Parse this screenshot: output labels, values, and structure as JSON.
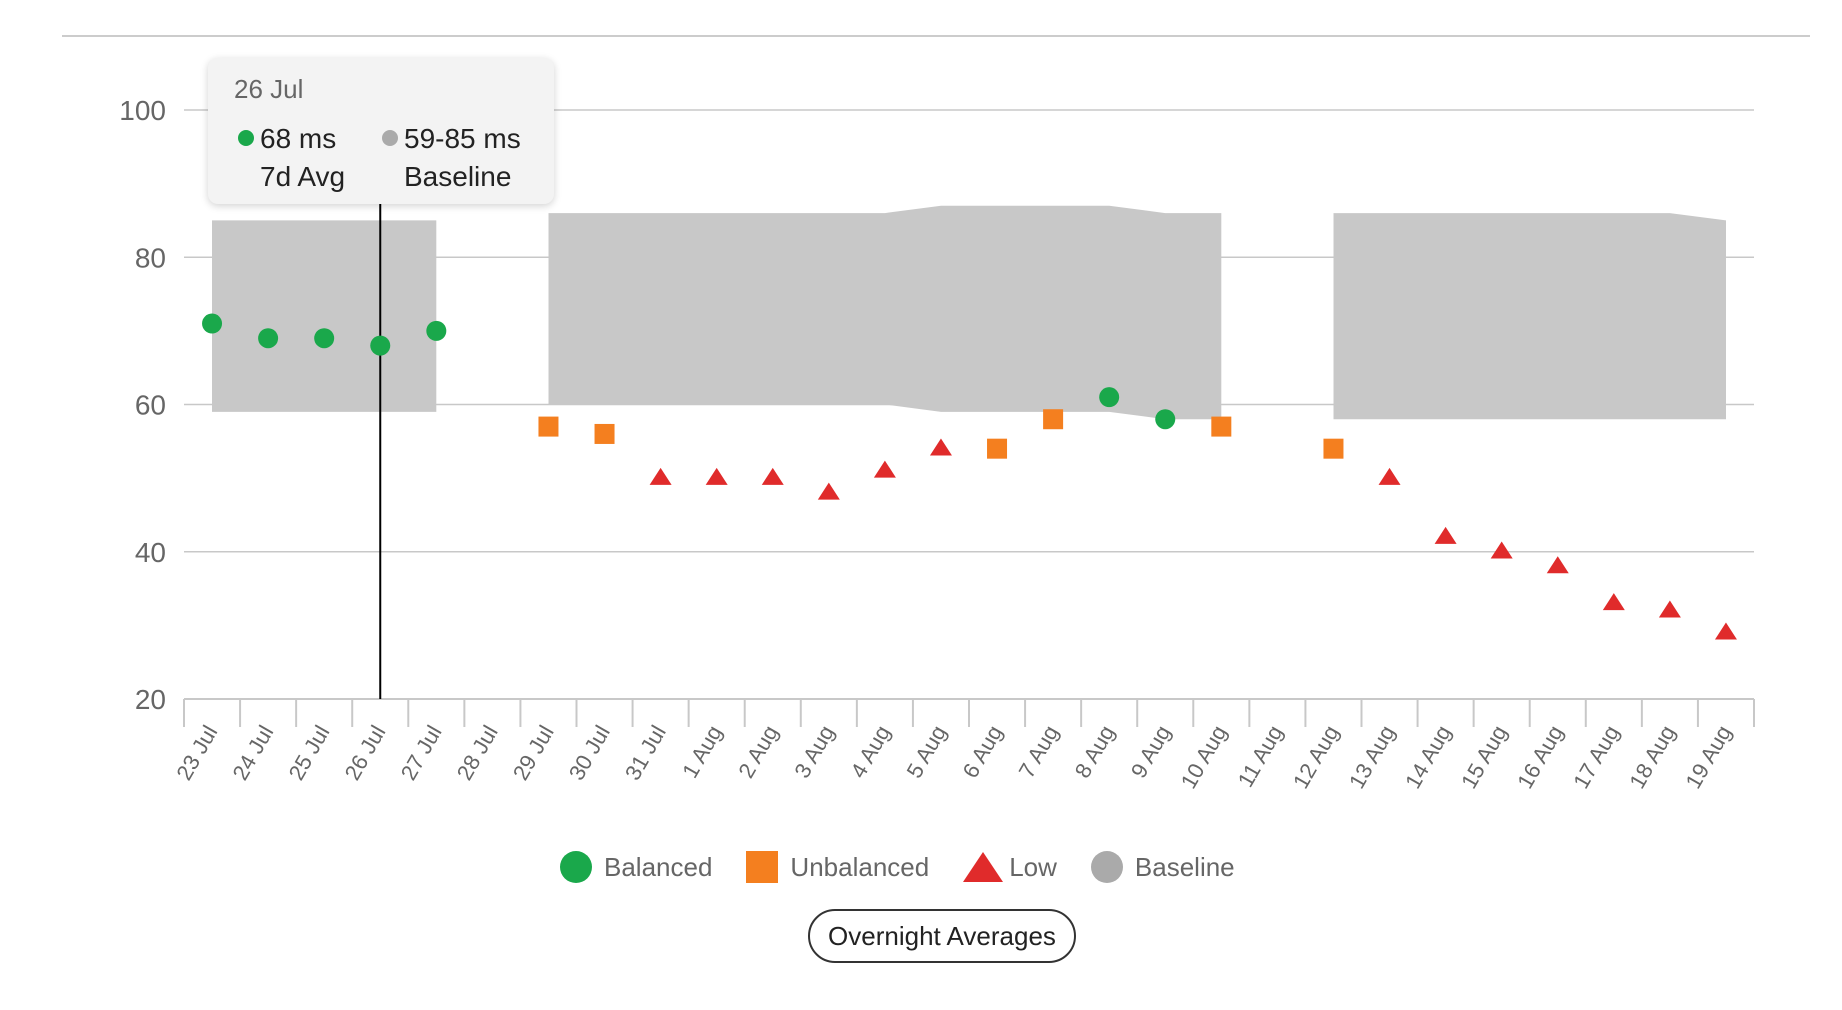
{
  "chart_data": {
    "type": "scatter",
    "ylim": [
      20,
      100
    ],
    "yticks": [
      20,
      40,
      60,
      80,
      100
    ],
    "categories": [
      "23 Jul",
      "24 Jul",
      "25 Jul",
      "26 Jul",
      "27 Jul",
      "28 Jul",
      "29 Jul",
      "30 Jul",
      "31 Jul",
      "1 Aug",
      "2 Aug",
      "3 Aug",
      "4 Aug",
      "5 Aug",
      "6 Aug",
      "7 Aug",
      "8 Aug",
      "9 Aug",
      "10 Aug",
      "11 Aug",
      "12 Aug",
      "13 Aug",
      "14 Aug",
      "15 Aug",
      "16 Aug",
      "17 Aug",
      "18 Aug",
      "19 Aug"
    ],
    "series": [
      {
        "name": "Balanced",
        "marker": "circle",
        "color": "#1aa84b",
        "points": [
          {
            "x": "23 Jul",
            "y": 71
          },
          {
            "x": "24 Jul",
            "y": 69
          },
          {
            "x": "25 Jul",
            "y": 69
          },
          {
            "x": "26 Jul",
            "y": 68
          },
          {
            "x": "27 Jul",
            "y": 70
          },
          {
            "x": "8 Aug",
            "y": 61
          },
          {
            "x": "9 Aug",
            "y": 58
          }
        ]
      },
      {
        "name": "Unbalanced",
        "marker": "square",
        "color": "#f47f1f",
        "points": [
          {
            "x": "29 Jul",
            "y": 57
          },
          {
            "x": "30 Jul",
            "y": 56
          },
          {
            "x": "6 Aug",
            "y": 54
          },
          {
            "x": "7 Aug",
            "y": 58
          },
          {
            "x": "10 Aug",
            "y": 57
          },
          {
            "x": "12 Aug",
            "y": 54
          }
        ]
      },
      {
        "name": "Low",
        "marker": "triangle",
        "color": "#e02b2b",
        "points": [
          {
            "x": "31 Jul",
            "y": 50
          },
          {
            "x": "1 Aug",
            "y": 50
          },
          {
            "x": "2 Aug",
            "y": 50
          },
          {
            "x": "3 Aug",
            "y": 48
          },
          {
            "x": "4 Aug",
            "y": 51
          },
          {
            "x": "5 Aug",
            "y": 54
          },
          {
            "x": "13 Aug",
            "y": 50
          },
          {
            "x": "14 Aug",
            "y": 42
          },
          {
            "x": "15 Aug",
            "y": 40
          },
          {
            "x": "16 Aug",
            "y": 38
          },
          {
            "x": "17 Aug",
            "y": 33
          },
          {
            "x": "18 Aug",
            "y": 32
          },
          {
            "x": "19 Aug",
            "y": 29
          }
        ]
      },
      {
        "name": "Baseline",
        "type": "area-range",
        "color": "#c8c8c8",
        "segments": [
          [
            {
              "x": "23 Jul",
              "low": 59,
              "high": 85
            },
            {
              "x": "27 Jul",
              "low": 59,
              "high": 85
            }
          ],
          [
            {
              "x": "29 Jul",
              "low": 60,
              "high": 86
            },
            {
              "x": "4 Aug",
              "low": 60,
              "high": 86
            },
            {
              "x": "5 Aug",
              "low": 59,
              "high": 87
            },
            {
              "x": "8 Aug",
              "low": 59,
              "high": 87
            },
            {
              "x": "9 Aug",
              "low": 58,
              "high": 86
            },
            {
              "x": "10 Aug",
              "low": 58,
              "high": 86
            }
          ],
          [
            {
              "x": "12 Aug",
              "low": 58,
              "high": 86
            },
            {
              "x": "18 Aug",
              "low": 58,
              "high": 86
            },
            {
              "x": "19 Aug",
              "low": 58,
              "high": 85
            }
          ]
        ]
      }
    ],
    "legend_position": "bottom-center",
    "grid": true
  },
  "tooltip": {
    "date": "26 Jul",
    "avg_value": "68 ms",
    "avg_label": "7d Avg",
    "baseline_value": "59-85 ms",
    "baseline_label": "Baseline",
    "crosshair_x": "26 Jul"
  },
  "legend": {
    "items": [
      {
        "label": "Balanced",
        "icon": "circle",
        "color": "#1aa84b"
      },
      {
        "label": "Unbalanced",
        "icon": "square",
        "color": "#f47f1f"
      },
      {
        "label": "Low",
        "icon": "triangle",
        "color": "#e02b2b"
      },
      {
        "label": "Baseline",
        "icon": "circle",
        "color": "#aaaaaa"
      }
    ]
  },
  "button": {
    "label": "Overnight Averages"
  }
}
